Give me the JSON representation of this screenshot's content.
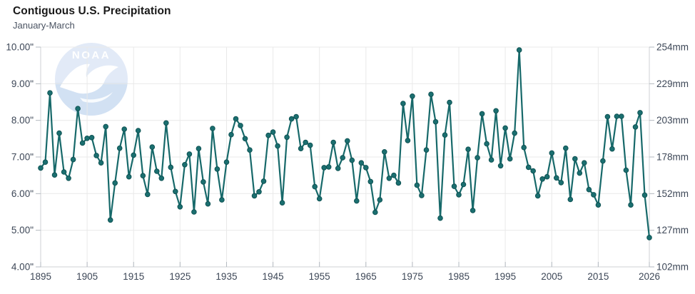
{
  "header": {
    "title": "Contiguous U.S. Precipitation",
    "subtitle": "January-March"
  },
  "watermark": {
    "label": "NOAA"
  },
  "colors": {
    "line": "#17696a",
    "marker_fill": "#1b6f70",
    "marker_stroke": "#0e5253",
    "grid": "#e9e9e9",
    "axis": "#cfd2d6",
    "tick": "#b3b9c0",
    "label": "#3d4757",
    "title": "#191919",
    "subtitle": "#4a5362",
    "watermark_circle": "#e2eaf7",
    "watermark_sea": "#d2e1f3",
    "watermark_bird": "#ffffff"
  },
  "axes": {
    "y_range_inches": [
      4,
      10
    ],
    "x_range_years": [
      1895,
      2026
    ],
    "left_ticks": [
      {
        "label": "10.00\"",
        "value": 10
      },
      {
        "label": "9.00\"",
        "value": 9
      },
      {
        "label": "8.00\"",
        "value": 8
      },
      {
        "label": "7.00\"",
        "value": 7
      },
      {
        "label": "6.00\"",
        "value": 6
      },
      {
        "label": "5.00\"",
        "value": 5
      },
      {
        "label": "4.00\"",
        "value": 4
      }
    ],
    "right_ticks": [
      {
        "label": "254mm",
        "value": 10
      },
      {
        "label": "229mm",
        "value": 9
      },
      {
        "label": "203mm",
        "value": 8
      },
      {
        "label": "178mm",
        "value": 7
      },
      {
        "label": "152mm",
        "value": 6
      },
      {
        "label": "127mm",
        "value": 5
      },
      {
        "label": "102mm",
        "value": 4
      }
    ],
    "x_ticks": [
      1895,
      1905,
      1915,
      1925,
      1935,
      1945,
      1955,
      1965,
      1975,
      1985,
      1995,
      2005,
      2015,
      2026
    ]
  },
  "chart_data": {
    "type": "line",
    "title": "Contiguous U.S. Precipitation",
    "subtitle": "January-March",
    "ylabel_left": "inches",
    "ylabel_right": "mm",
    "ylim": [
      4,
      10
    ],
    "xlim": [
      1895,
      2026
    ],
    "grid": true,
    "legend": false,
    "series_name": "January-March precipitation (inches)",
    "x": [
      1895,
      1896,
      1897,
      1898,
      1899,
      1900,
      1901,
      1902,
      1903,
      1904,
      1905,
      1906,
      1907,
      1908,
      1909,
      1910,
      1911,
      1912,
      1913,
      1914,
      1915,
      1916,
      1917,
      1918,
      1919,
      1920,
      1921,
      1922,
      1923,
      1924,
      1925,
      1926,
      1927,
      1928,
      1929,
      1930,
      1931,
      1932,
      1933,
      1934,
      1935,
      1936,
      1937,
      1938,
      1939,
      1940,
      1941,
      1942,
      1943,
      1944,
      1945,
      1946,
      1947,
      1948,
      1949,
      1950,
      1951,
      1952,
      1953,
      1954,
      1955,
      1956,
      1957,
      1958,
      1959,
      1960,
      1961,
      1962,
      1963,
      1964,
      1965,
      1966,
      1967,
      1968,
      1969,
      1970,
      1971,
      1972,
      1973,
      1974,
      1975,
      1976,
      1977,
      1978,
      1979,
      1980,
      1981,
      1982,
      1983,
      1984,
      1985,
      1986,
      1987,
      1988,
      1989,
      1990,
      1991,
      1992,
      1993,
      1994,
      1995,
      1996,
      1997,
      1998,
      1999,
      2000,
      2001,
      2002,
      2003,
      2004,
      2005,
      2006,
      2007,
      2008,
      2009,
      2010,
      2011,
      2012,
      2013,
      2014,
      2015,
      2016,
      2017,
      2018,
      2019,
      2020,
      2021,
      2022,
      2023,
      2024,
      2025,
      2026
    ],
    "values": [
      6.7,
      6.86,
      8.75,
      6.51,
      7.65,
      6.59,
      6.42,
      6.93,
      8.32,
      7.38,
      7.51,
      7.53,
      7.04,
      6.84,
      7.83,
      5.28,
      6.29,
      7.24,
      7.76,
      6.46,
      7.05,
      7.72,
      6.49,
      5.98,
      7.27,
      6.61,
      6.42,
      7.93,
      6.72,
      6.06,
      5.64,
      6.79,
      7.08,
      5.5,
      7.23,
      6.32,
      5.72,
      7.78,
      6.67,
      5.83,
      6.86,
      7.61,
      8.04,
      7.86,
      7.5,
      7.19,
      5.94,
      6.05,
      6.34,
      7.59,
      7.68,
      7.3,
      5.75,
      7.54,
      8.04,
      8.1,
      7.23,
      7.4,
      7.32,
      6.19,
      5.86,
      6.71,
      6.73,
      7.4,
      6.69,
      6.98,
      7.44,
      6.91,
      5.8,
      6.84,
      6.71,
      6.33,
      5.49,
      5.83,
      7.14,
      6.42,
      6.5,
      6.29,
      8.46,
      7.45,
      8.66,
      6.23,
      5.95,
      7.19,
      8.71,
      7.96,
      5.33,
      7.6,
      8.49,
      6.2,
      5.97,
      6.25,
      7.21,
      5.54,
      6.98,
      8.18,
      7.36,
      6.92,
      8.26,
      6.76,
      7.79,
      6.95,
      7.65,
      9.92,
      7.26,
      6.72,
      6.62,
      5.94,
      6.4,
      6.46,
      7.11,
      6.43,
      6.3,
      7.24,
      5.84,
      6.95,
      6.56,
      6.84,
      6.11,
      5.97,
      5.69,
      6.89,
      8.1,
      7.22,
      8.11,
      8.11,
      6.64,
      5.69,
      7.82,
      8.21,
      5.96,
      4.8
    ]
  }
}
